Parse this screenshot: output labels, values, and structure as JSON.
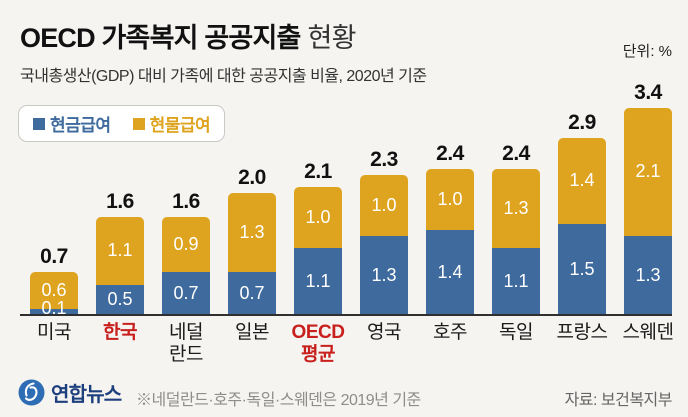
{
  "header": {
    "title_bold": "OECD 가족복지 공공지출",
    "title_regular": "현황",
    "unit_label": "단위: %",
    "subtitle": "국내총생산(GDP) 대비 가족에 대한 공공지출 비율, 2020년 기준"
  },
  "legend": {
    "items": [
      {
        "label": "현금급여",
        "color": "#3e6a9d"
      },
      {
        "label": "현물급여",
        "color": "#dfa41f"
      }
    ]
  },
  "chart_data": {
    "type": "bar",
    "stacked": true,
    "unit": "%",
    "title": "OECD 가족복지 공공지출 현황",
    "subtitle": "국내총생산(GDP) 대비 가족에 대한 공공지출 비율, 2020년 기준",
    "categories": [
      "미국",
      "한국",
      "네덜\n란드",
      "일본",
      "OECD\n평균",
      "영국",
      "호주",
      "독일",
      "프랑스",
      "스웨덴"
    ],
    "highlighted": [
      false,
      true,
      false,
      false,
      true,
      false,
      false,
      false,
      false,
      false
    ],
    "series": [
      {
        "name": "현금급여",
        "color": "#3e6a9d",
        "values": [
          0.1,
          0.5,
          0.7,
          0.7,
          1.1,
          1.3,
          1.4,
          1.1,
          1.5,
          1.3
        ]
      },
      {
        "name": "현물급여",
        "color": "#dfa41f",
        "values": [
          0.6,
          1.1,
          0.9,
          1.3,
          1.0,
          1.0,
          1.0,
          1.3,
          1.4,
          2.1
        ]
      }
    ],
    "totals": [
      0.7,
      1.6,
      1.6,
      2.0,
      2.1,
      2.3,
      2.4,
      2.4,
      2.9,
      3.4
    ],
    "ylim": [
      0,
      3.6
    ],
    "grid": false,
    "legend_position": "top-left",
    "value_labels": true
  },
  "footer": {
    "logo_text": "연합뉴스",
    "footnote": "※네덜란드·호주·독일·스웨덴은 2019년 기준",
    "source": "자료: 보건복지부"
  },
  "colors": {
    "background": "#f5f4f1",
    "cash_blue": "#3e6a9d",
    "inkind_gold": "#dfa41f",
    "highlight_red": "#c8201d",
    "axis": "#2f2f2f",
    "brand_navy": "#1d3f7d",
    "logo_blue": "#2e6db4"
  }
}
